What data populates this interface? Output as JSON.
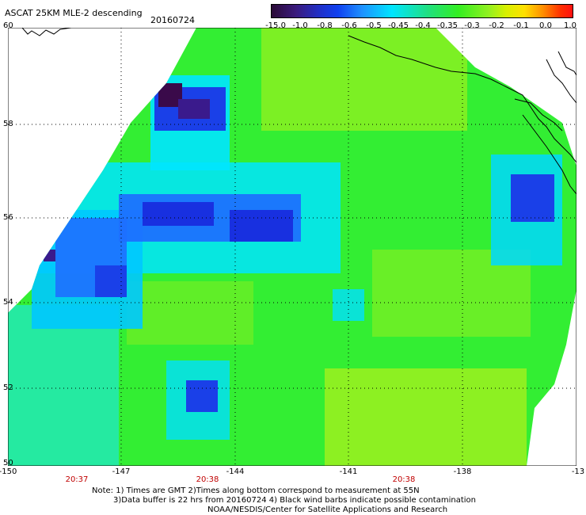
{
  "title": "ASCAT 25KM MLE-2 descending",
  "date": "20160724",
  "colorbar": {
    "labels": [
      "-15.0",
      "-1.0",
      "-0.8",
      "-0.6",
      "-0.5",
      "-0.45",
      "-0.4",
      "-0.35",
      "-0.3",
      "-0.2",
      "-0.1",
      "0.0",
      "1.0"
    ]
  },
  "axes": {
    "lat_labels": [
      "60",
      "58",
      "56",
      "54",
      "52",
      "50"
    ],
    "lon_labels": [
      "-150",
      "-147",
      "-144",
      "-141",
      "-138",
      "-13"
    ],
    "time_labels": [
      "20:37",
      "20:38",
      "20:38"
    ]
  },
  "colors": {
    "very_low": "#3a0a4a",
    "low": "#1a30d8",
    "mid_low": "#00e0ff",
    "mid": "#33ee33",
    "mid_high": "#9ef020",
    "coast": "#000000"
  },
  "notes": [
    "Note: 1) Times are GMT 2)Times along bottom correspond to measurement at 55N",
    "3)Data buffer is 22 hrs from 20160724 4) Black wind barbs indicate possible contamination",
    "NOAA/NESDIS/Center for Satellite Applications and Research"
  ]
}
